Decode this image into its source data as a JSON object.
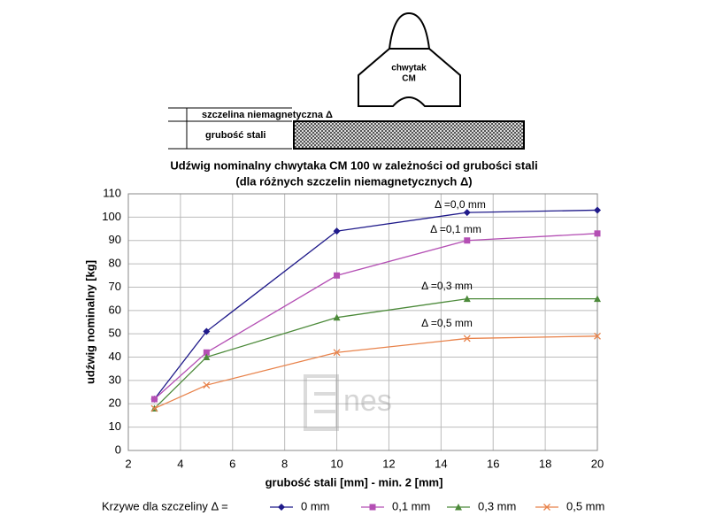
{
  "diagram": {
    "gripper": [
      "chwytak",
      "CM"
    ],
    "gap": "szczelina niemagnetyczna  Δ",
    "steel": "grubość stali"
  },
  "chart_data": {
    "type": "line",
    "title": [
      "Udźwig nominalny chwytaka CM 100  w zależności od grubości stali",
      "(dla różnych szczelin niemagnetycznych Δ)"
    ],
    "x_label": "grubość stali [mm] - min. 2 [mm]",
    "y_label": "udźwig nominalny [kg]",
    "x": [
      3,
      5,
      10,
      15,
      20
    ],
    "series": [
      {
        "name": "0 mm",
        "color": "#1f1a8a",
        "marker": "diamond",
        "values": [
          22,
          51,
          94,
          102,
          103
        ]
      },
      {
        "name": "0,1 mm",
        "color": "#b44fb4",
        "marker": "square",
        "values": [
          22,
          42,
          75,
          90,
          93
        ]
      },
      {
        "name": "0,3 mm",
        "color": "#4c8a3a",
        "marker": "triangle",
        "values": [
          18,
          40,
          57,
          65,
          65
        ]
      },
      {
        "name": "0,5 mm",
        "color": "#e8824a",
        "marker": "x",
        "values": [
          18,
          28,
          42,
          48,
          49
        ]
      }
    ],
    "annotations": [
      "Δ =0,0 mm",
      "Δ =0,1 mm",
      "Δ =0,3 mm",
      "Δ =0,5 mm"
    ],
    "legend_title": "Krzywe dla szczeliny Δ =",
    "watermark": "nes",
    "xlim": [
      2,
      20
    ],
    "xticks": [
      2,
      4,
      6,
      8,
      10,
      12,
      14,
      16,
      18,
      20
    ],
    "ylim": [
      0,
      110
    ],
    "yticks": [
      0,
      10,
      20,
      30,
      40,
      50,
      60,
      70,
      80,
      90,
      100,
      110
    ],
    "grid": true
  }
}
